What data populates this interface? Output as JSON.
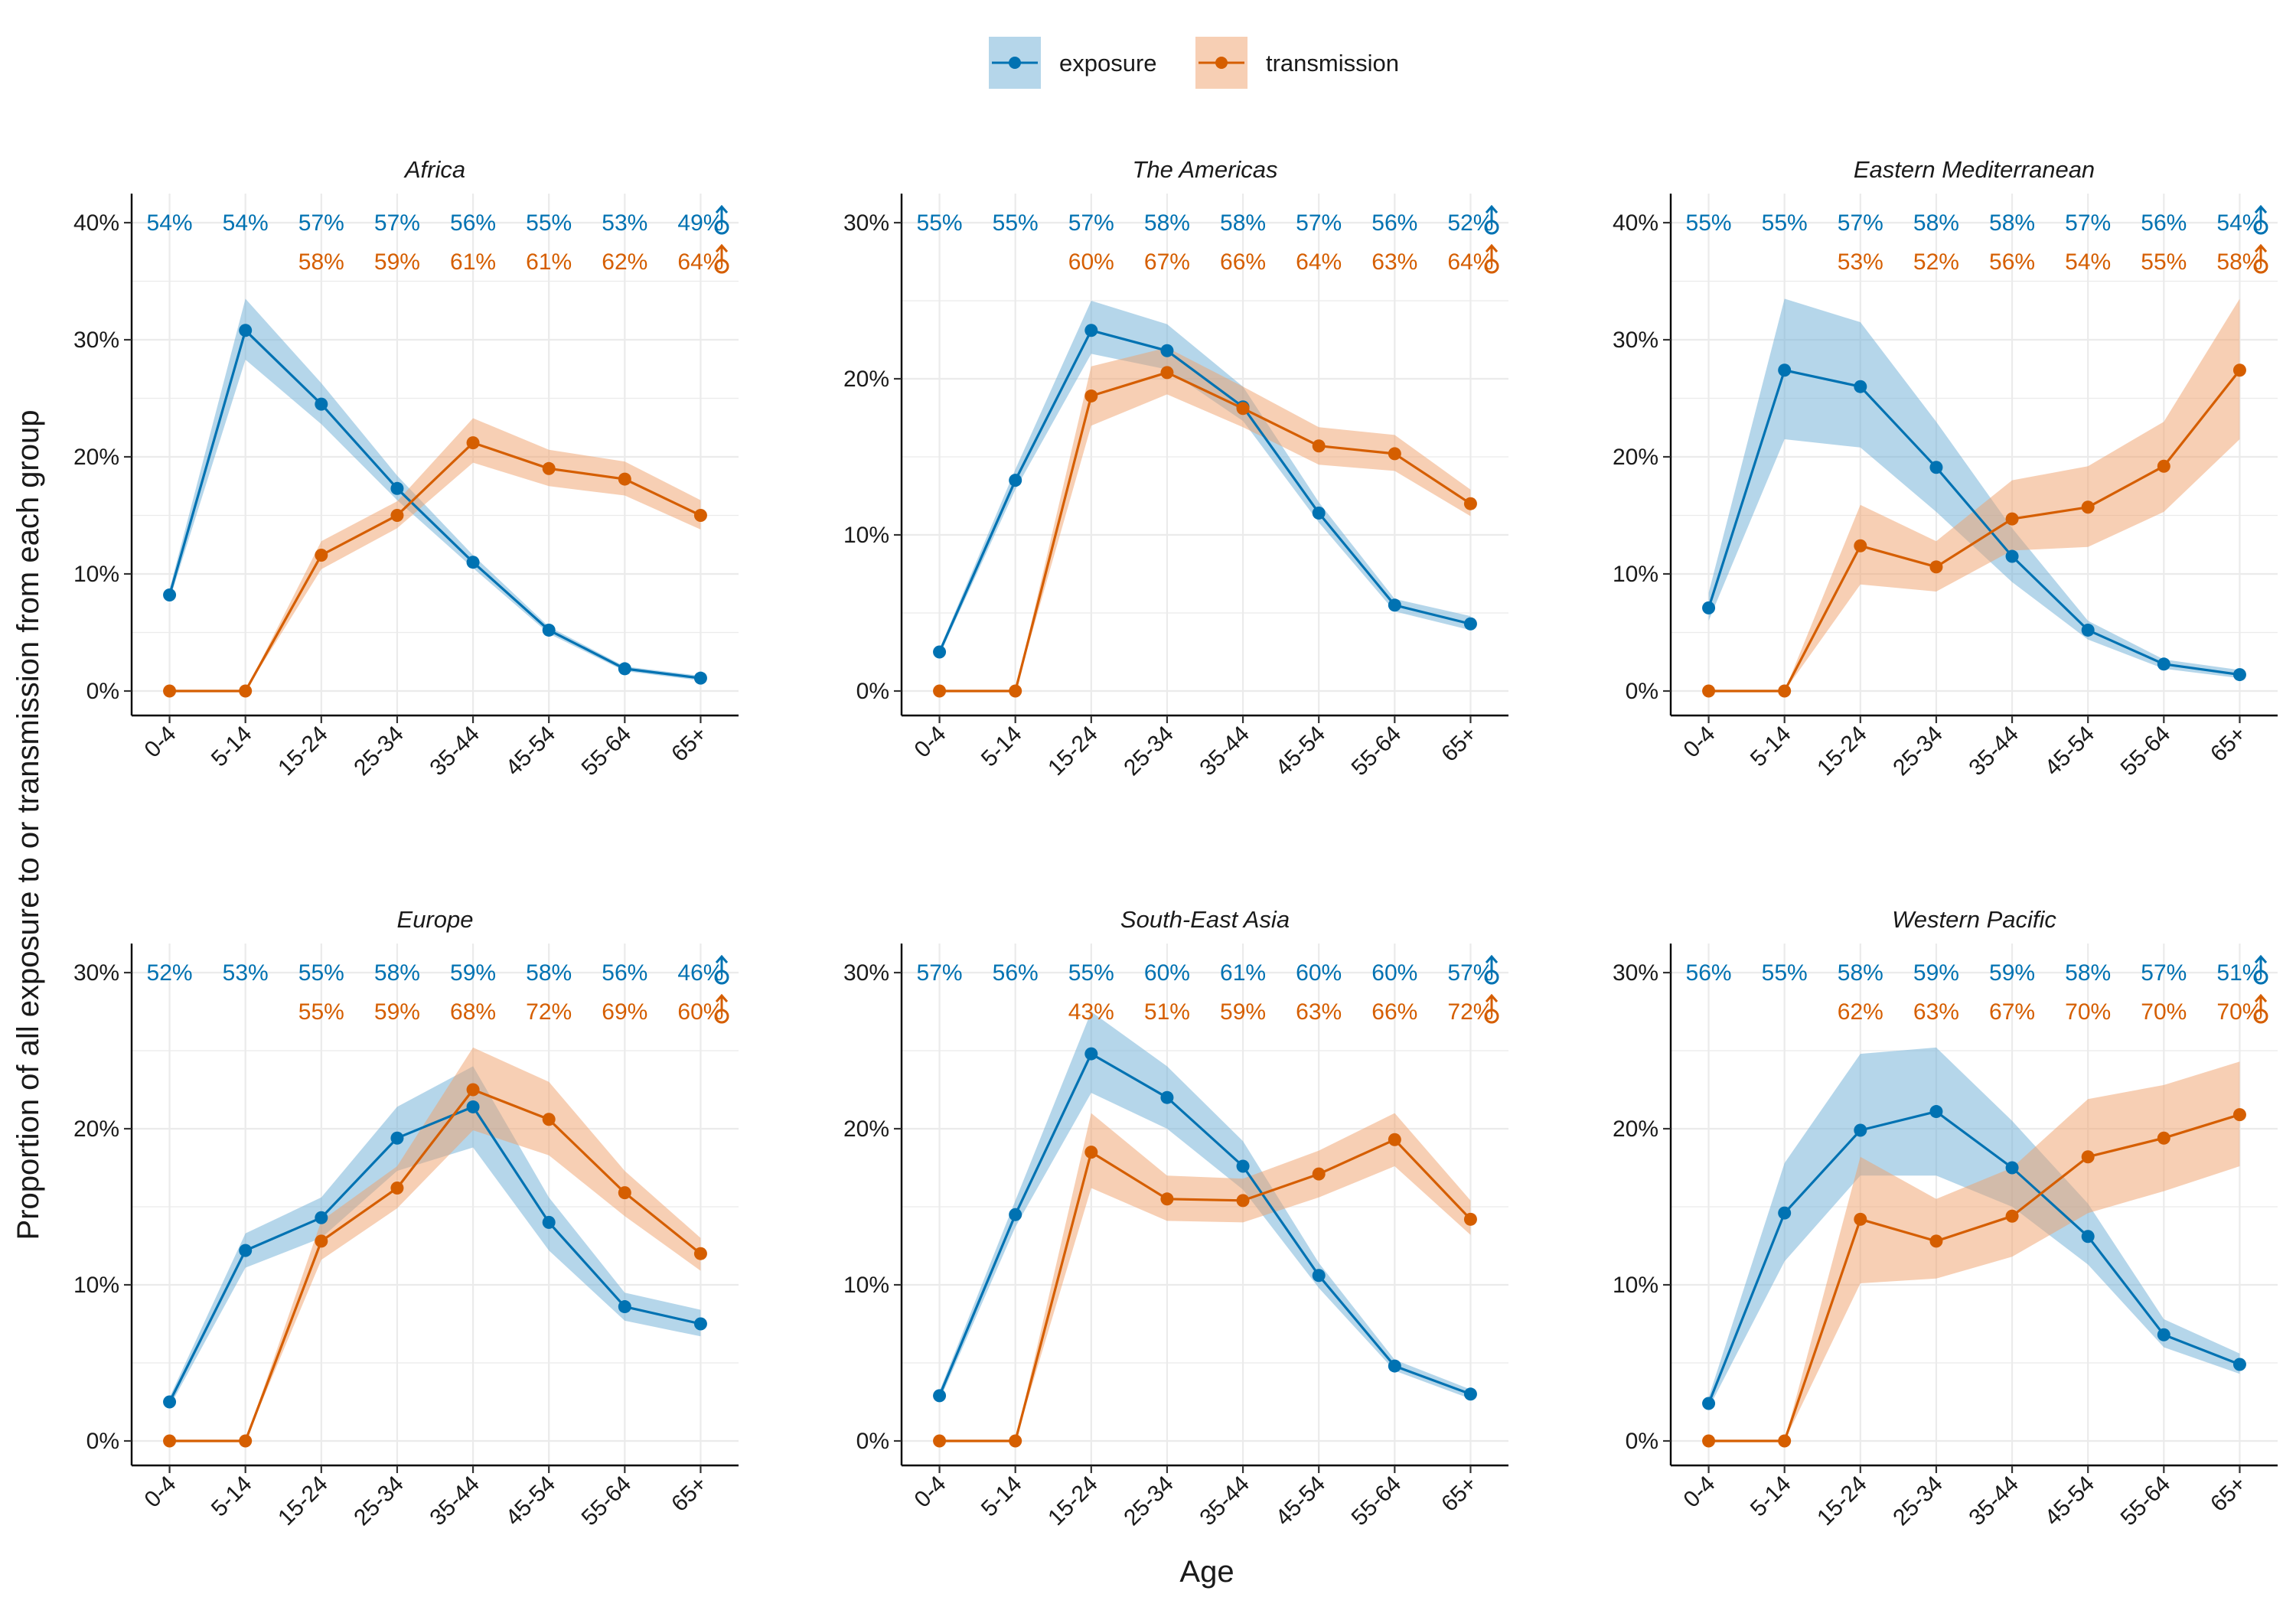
{
  "colors": {
    "exposure": "#0072B2",
    "transmission": "#D55E00",
    "exposure_ribbon": "#6BAED6",
    "transmission_ribbon": "#F0A06A",
    "grid": "#EBEBEB"
  },
  "legend": {
    "position": "top",
    "items": [
      {
        "key": "exposure",
        "label": "exposure"
      },
      {
        "key": "transmission",
        "label": "transmission"
      }
    ]
  },
  "axes": {
    "xlabel": "Age",
    "ylabel": "Proportion of all exposure to or transmission from each group"
  },
  "chart_data": [
    {
      "type": "line",
      "title": "Africa",
      "categories": [
        "0-4",
        "5-14",
        "15-24",
        "25-34",
        "35-44",
        "45-54",
        "55-64",
        "65+"
      ],
      "ylim": [
        0,
        40
      ],
      "yticks": [
        0,
        10,
        20,
        30,
        40
      ],
      "series": [
        {
          "name": "exposure",
          "values": [
            8.2,
            30.8,
            24.5,
            17.3,
            11.0,
            5.2,
            1.9,
            1.1
          ],
          "lower": [
            7.8,
            28.3,
            22.8,
            16.3,
            10.5,
            4.9,
            1.7,
            0.9
          ],
          "upper": [
            8.7,
            33.5,
            26.3,
            18.4,
            11.6,
            5.5,
            2.1,
            1.3
          ]
        },
        {
          "name": "transmission",
          "values": [
            0,
            0,
            11.6,
            15.0,
            21.2,
            19.0,
            18.1,
            15.0
          ],
          "lower": [
            0,
            0,
            10.4,
            13.9,
            19.5,
            17.5,
            16.7,
            13.8
          ],
          "upper": [
            0,
            0,
            12.8,
            16.2,
            23.3,
            20.6,
            19.6,
            16.3
          ]
        }
      ],
      "male_pct": {
        "exposure": [
          "54%",
          "54%",
          "57%",
          "57%",
          "56%",
          "55%",
          "53%",
          "49%"
        ],
        "transmission": [
          "",
          "",
          "58%",
          "59%",
          "61%",
          "61%",
          "62%",
          "64%"
        ]
      }
    },
    {
      "type": "line",
      "title": "The Americas",
      "categories": [
        "0-4",
        "5-14",
        "15-24",
        "25-34",
        "35-44",
        "45-54",
        "55-64",
        "65+"
      ],
      "ylim": [
        0,
        30
      ],
      "yticks": [
        0,
        10,
        20,
        30
      ],
      "series": [
        {
          "name": "exposure",
          "values": [
            2.5,
            13.5,
            23.1,
            21.8,
            18.2,
            11.4,
            5.5,
            4.3
          ],
          "lower": [
            2.3,
            12.9,
            21.6,
            20.6,
            17.3,
            10.8,
            5.1,
            3.9
          ],
          "upper": [
            2.7,
            14.2,
            25.0,
            23.5,
            19.5,
            12.1,
            5.9,
            4.8
          ]
        },
        {
          "name": "transmission",
          "values": [
            0,
            0,
            18.9,
            20.4,
            18.1,
            15.7,
            15.2,
            12.0
          ],
          "lower": [
            0,
            0,
            17.0,
            19.0,
            16.9,
            14.5,
            14.1,
            11.2
          ],
          "upper": [
            0,
            0,
            20.8,
            22.0,
            19.5,
            16.9,
            16.4,
            12.9
          ]
        }
      ],
      "male_pct": {
        "exposure": [
          "55%",
          "55%",
          "57%",
          "58%",
          "58%",
          "57%",
          "56%",
          "52%"
        ],
        "transmission": [
          "",
          "",
          "60%",
          "67%",
          "66%",
          "64%",
          "63%",
          "64%"
        ]
      }
    },
    {
      "type": "line",
      "title": "Eastern Mediterranean",
      "categories": [
        "0-4",
        "5-14",
        "15-24",
        "25-34",
        "35-44",
        "45-54",
        "55-64",
        "65+"
      ],
      "ylim": [
        0,
        40
      ],
      "yticks": [
        0,
        10,
        20,
        30,
        40
      ],
      "series": [
        {
          "name": "exposure",
          "values": [
            7.1,
            27.4,
            26.0,
            19.1,
            11.5,
            5.2,
            2.3,
            1.4
          ],
          "lower": [
            6.0,
            21.5,
            20.8,
            15.3,
            9.3,
            4.4,
            1.9,
            1.1
          ],
          "upper": [
            8.4,
            33.5,
            31.5,
            23.0,
            13.9,
            6.0,
            2.7,
            1.8
          ]
        },
        {
          "name": "transmission",
          "values": [
            0,
            0,
            12.4,
            10.6,
            14.7,
            15.7,
            19.2,
            27.4
          ],
          "lower": [
            0,
            0,
            9.1,
            8.5,
            12.0,
            12.3,
            15.3,
            21.5
          ],
          "upper": [
            0,
            0,
            15.9,
            12.8,
            18.0,
            19.2,
            23.0,
            33.5
          ]
        }
      ],
      "male_pct": {
        "exposure": [
          "55%",
          "55%",
          "57%",
          "58%",
          "58%",
          "57%",
          "56%",
          "54%"
        ],
        "transmission": [
          "",
          "",
          "53%",
          "52%",
          "56%",
          "54%",
          "55%",
          "58%"
        ]
      }
    },
    {
      "type": "line",
      "title": "Europe",
      "categories": [
        "0-4",
        "5-14",
        "15-24",
        "25-34",
        "35-44",
        "45-54",
        "55-64",
        "65+"
      ],
      "ylim": [
        0,
        30
      ],
      "yticks": [
        0,
        10,
        20,
        30
      ],
      "series": [
        {
          "name": "exposure",
          "values": [
            2.5,
            12.2,
            14.3,
            19.4,
            21.4,
            14.0,
            8.6,
            7.5
          ],
          "lower": [
            2.2,
            11.1,
            13.0,
            17.3,
            18.8,
            12.2,
            7.7,
            6.7
          ],
          "upper": [
            2.8,
            13.3,
            15.6,
            21.4,
            24.0,
            15.6,
            9.5,
            8.4
          ]
        },
        {
          "name": "transmission",
          "values": [
            0,
            0,
            12.8,
            16.2,
            22.5,
            20.6,
            15.9,
            12.0
          ],
          "lower": [
            0,
            0,
            11.6,
            14.9,
            19.9,
            18.3,
            14.4,
            10.9
          ],
          "upper": [
            0,
            0,
            14.1,
            17.6,
            25.2,
            23.0,
            17.3,
            13.0
          ]
        }
      ],
      "male_pct": {
        "exposure": [
          "52%",
          "53%",
          "55%",
          "58%",
          "59%",
          "58%",
          "56%",
          "46%"
        ],
        "transmission": [
          "",
          "",
          "55%",
          "59%",
          "68%",
          "72%",
          "69%",
          "60%"
        ]
      }
    },
    {
      "type": "line",
      "title": "South-East Asia",
      "categories": [
        "0-4",
        "5-14",
        "15-24",
        "25-34",
        "35-44",
        "45-54",
        "55-64",
        "65+"
      ],
      "ylim": [
        0,
        30
      ],
      "yticks": [
        0,
        10,
        20,
        30
      ],
      "series": [
        {
          "name": "exposure",
          "values": [
            2.9,
            14.5,
            24.8,
            22.0,
            17.6,
            10.6,
            4.8,
            3.0
          ],
          "lower": [
            2.6,
            13.7,
            22.3,
            20.0,
            16.1,
            9.8,
            4.5,
            2.7
          ],
          "upper": [
            3.2,
            15.4,
            27.5,
            24.0,
            19.2,
            11.4,
            5.2,
            3.3
          ]
        },
        {
          "name": "transmission",
          "values": [
            0,
            0,
            18.5,
            15.5,
            15.4,
            17.1,
            19.3,
            14.2
          ],
          "lower": [
            0,
            0,
            16.2,
            14.1,
            14.0,
            15.6,
            17.6,
            13.2
          ],
          "upper": [
            0,
            0,
            21.0,
            17.0,
            16.8,
            18.6,
            21.0,
            15.4
          ]
        }
      ],
      "male_pct": {
        "exposure": [
          "57%",
          "56%",
          "55%",
          "60%",
          "61%",
          "60%",
          "60%",
          "57%"
        ],
        "transmission": [
          "",
          "",
          "43%",
          "51%",
          "59%",
          "63%",
          "66%",
          "72%"
        ]
      }
    },
    {
      "type": "line",
      "title": "Western Pacific",
      "categories": [
        "0-4",
        "5-14",
        "15-24",
        "25-34",
        "35-44",
        "45-54",
        "55-64",
        "65+"
      ],
      "ylim": [
        0,
        30
      ],
      "yticks": [
        0,
        10,
        20,
        30
      ],
      "series": [
        {
          "name": "exposure",
          "values": [
            2.4,
            14.6,
            19.9,
            21.1,
            17.5,
            13.1,
            6.8,
            4.9
          ],
          "lower": [
            2.1,
            11.5,
            17.0,
            17.0,
            15.0,
            11.3,
            6.0,
            4.3
          ],
          "upper": [
            2.8,
            17.8,
            24.8,
            25.2,
            20.5,
            15.2,
            7.8,
            5.6
          ]
        },
        {
          "name": "transmission",
          "values": [
            0,
            0,
            14.2,
            12.8,
            14.4,
            18.2,
            19.4,
            20.9
          ],
          "lower": [
            0,
            0,
            10.1,
            10.4,
            11.8,
            14.6,
            16.0,
            17.6
          ],
          "upper": [
            0,
            0,
            18.2,
            15.5,
            17.5,
            21.9,
            22.8,
            24.3
          ]
        }
      ],
      "male_pct": {
        "exposure": [
          "56%",
          "55%",
          "58%",
          "59%",
          "59%",
          "58%",
          "57%",
          "51%"
        ],
        "transmission": [
          "",
          "",
          "62%",
          "63%",
          "67%",
          "70%",
          "70%",
          "70%"
        ]
      }
    }
  ]
}
